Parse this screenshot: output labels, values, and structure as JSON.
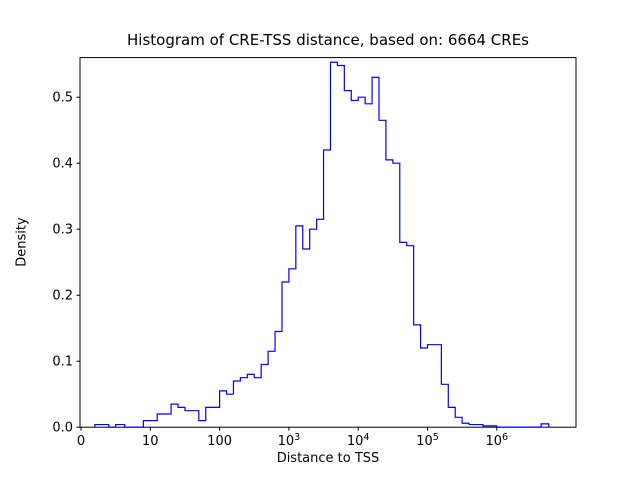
{
  "figure": {
    "title": "Histogram of CRE-TSS distance, based on: 6664 CREs",
    "xlabel": "Distance to TSS",
    "ylabel": "Density"
  },
  "chart_data": {
    "type": "bar",
    "subtype": "step-histogram",
    "title": "Histogram of CRE-TSS distance, based on: 6664 CREs",
    "xlabel": "Distance to TSS",
    "ylabel": "Density",
    "line_color": "#0000ff",
    "axis_color": "#000000",
    "background": "#ffffff",
    "x_scale": "symlog",
    "x_linthresh": 10,
    "x_unit_note": "u is symlog axis position: u = value/10 for value <= 10, u = 1 + log10(value/10) for value > 10",
    "xlim_u": [
      -0.015,
      7.14
    ],
    "ylim": [
      0,
      0.56
    ],
    "grid": false,
    "legend": "none",
    "yticks": [
      0.0,
      0.1,
      0.2,
      0.3,
      0.4,
      0.5
    ],
    "xticks": [
      {
        "label": "0",
        "u": 0
      },
      {
        "label": "10",
        "u": 1
      },
      {
        "label": "100",
        "u": 2
      },
      {
        "base": "10",
        "exp": "3",
        "u": 3
      },
      {
        "base": "10",
        "exp": "4",
        "u": 4
      },
      {
        "base": "10",
        "exp": "5",
        "u": 5
      },
      {
        "base": "10",
        "exp": "6",
        "u": 6
      }
    ],
    "bins": [
      {
        "u0": 0.2,
        "u1": 0.4,
        "h": 0.004
      },
      {
        "u0": 0.5,
        "u1": 0.63,
        "h": 0.004
      },
      {
        "u0": 0.9,
        "u1": 1.0,
        "h": 0.01
      },
      {
        "u0": 1.0,
        "u1": 1.1,
        "h": 0.01
      },
      {
        "u0": 1.1,
        "u1": 1.2,
        "h": 0.02
      },
      {
        "u0": 1.2,
        "u1": 1.3,
        "h": 0.02
      },
      {
        "u0": 1.3,
        "u1": 1.4,
        "h": 0.035
      },
      {
        "u0": 1.4,
        "u1": 1.5,
        "h": 0.03
      },
      {
        "u0": 1.5,
        "u1": 1.6,
        "h": 0.025
      },
      {
        "u0": 1.6,
        "u1": 1.7,
        "h": 0.025
      },
      {
        "u0": 1.7,
        "u1": 1.8,
        "h": 0.01
      },
      {
        "u0": 1.8,
        "u1": 1.9,
        "h": 0.03
      },
      {
        "u0": 1.9,
        "u1": 2.0,
        "h": 0.03
      },
      {
        "u0": 2.0,
        "u1": 2.1,
        "h": 0.055
      },
      {
        "u0": 2.1,
        "u1": 2.2,
        "h": 0.05
      },
      {
        "u0": 2.2,
        "u1": 2.3,
        "h": 0.07
      },
      {
        "u0": 2.3,
        "u1": 2.4,
        "h": 0.075
      },
      {
        "u0": 2.4,
        "u1": 2.5,
        "h": 0.08
      },
      {
        "u0": 2.5,
        "u1": 2.6,
        "h": 0.075
      },
      {
        "u0": 2.6,
        "u1": 2.7,
        "h": 0.095
      },
      {
        "u0": 2.7,
        "u1": 2.8,
        "h": 0.115
      },
      {
        "u0": 2.8,
        "u1": 2.9,
        "h": 0.145
      },
      {
        "u0": 2.9,
        "u1": 3.0,
        "h": 0.22
      },
      {
        "u0": 3.0,
        "u1": 3.1,
        "h": 0.24
      },
      {
        "u0": 3.1,
        "u1": 3.2,
        "h": 0.305
      },
      {
        "u0": 3.2,
        "u1": 3.3,
        "h": 0.27
      },
      {
        "u0": 3.3,
        "u1": 3.4,
        "h": 0.3
      },
      {
        "u0": 3.4,
        "u1": 3.5,
        "h": 0.315
      },
      {
        "u0": 3.5,
        "u1": 3.6,
        "h": 0.42
      },
      {
        "u0": 3.6,
        "u1": 3.7,
        "h": 0.553
      },
      {
        "u0": 3.7,
        "u1": 3.8,
        "h": 0.548
      },
      {
        "u0": 3.8,
        "u1": 3.9,
        "h": 0.51
      },
      {
        "u0": 3.9,
        "u1": 4.0,
        "h": 0.495
      },
      {
        "u0": 4.0,
        "u1": 4.1,
        "h": 0.5
      },
      {
        "u0": 4.1,
        "u1": 4.2,
        "h": 0.49
      },
      {
        "u0": 4.2,
        "u1": 4.3,
        "h": 0.53
      },
      {
        "u0": 4.3,
        "u1": 4.4,
        "h": 0.465
      },
      {
        "u0": 4.4,
        "u1": 4.5,
        "h": 0.405
      },
      {
        "u0": 4.5,
        "u1": 4.6,
        "h": 0.4
      },
      {
        "u0": 4.6,
        "u1": 4.7,
        "h": 0.28
      },
      {
        "u0": 4.7,
        "u1": 4.8,
        "h": 0.275
      },
      {
        "u0": 4.8,
        "u1": 4.9,
        "h": 0.155
      },
      {
        "u0": 4.9,
        "u1": 5.0,
        "h": 0.12
      },
      {
        "u0": 5.0,
        "u1": 5.1,
        "h": 0.125
      },
      {
        "u0": 5.1,
        "u1": 5.2,
        "h": 0.125
      },
      {
        "u0": 5.2,
        "u1": 5.3,
        "h": 0.065
      },
      {
        "u0": 5.3,
        "u1": 5.4,
        "h": 0.03
      },
      {
        "u0": 5.4,
        "u1": 5.5,
        "h": 0.015
      },
      {
        "u0": 5.5,
        "u1": 5.6,
        "h": 0.006
      },
      {
        "u0": 5.6,
        "u1": 5.8,
        "h": 0.004
      },
      {
        "u0": 5.8,
        "u1": 6.0,
        "h": 0.002
      },
      {
        "u0": 6.64,
        "u1": 6.75,
        "h": 0.005
      }
    ]
  }
}
